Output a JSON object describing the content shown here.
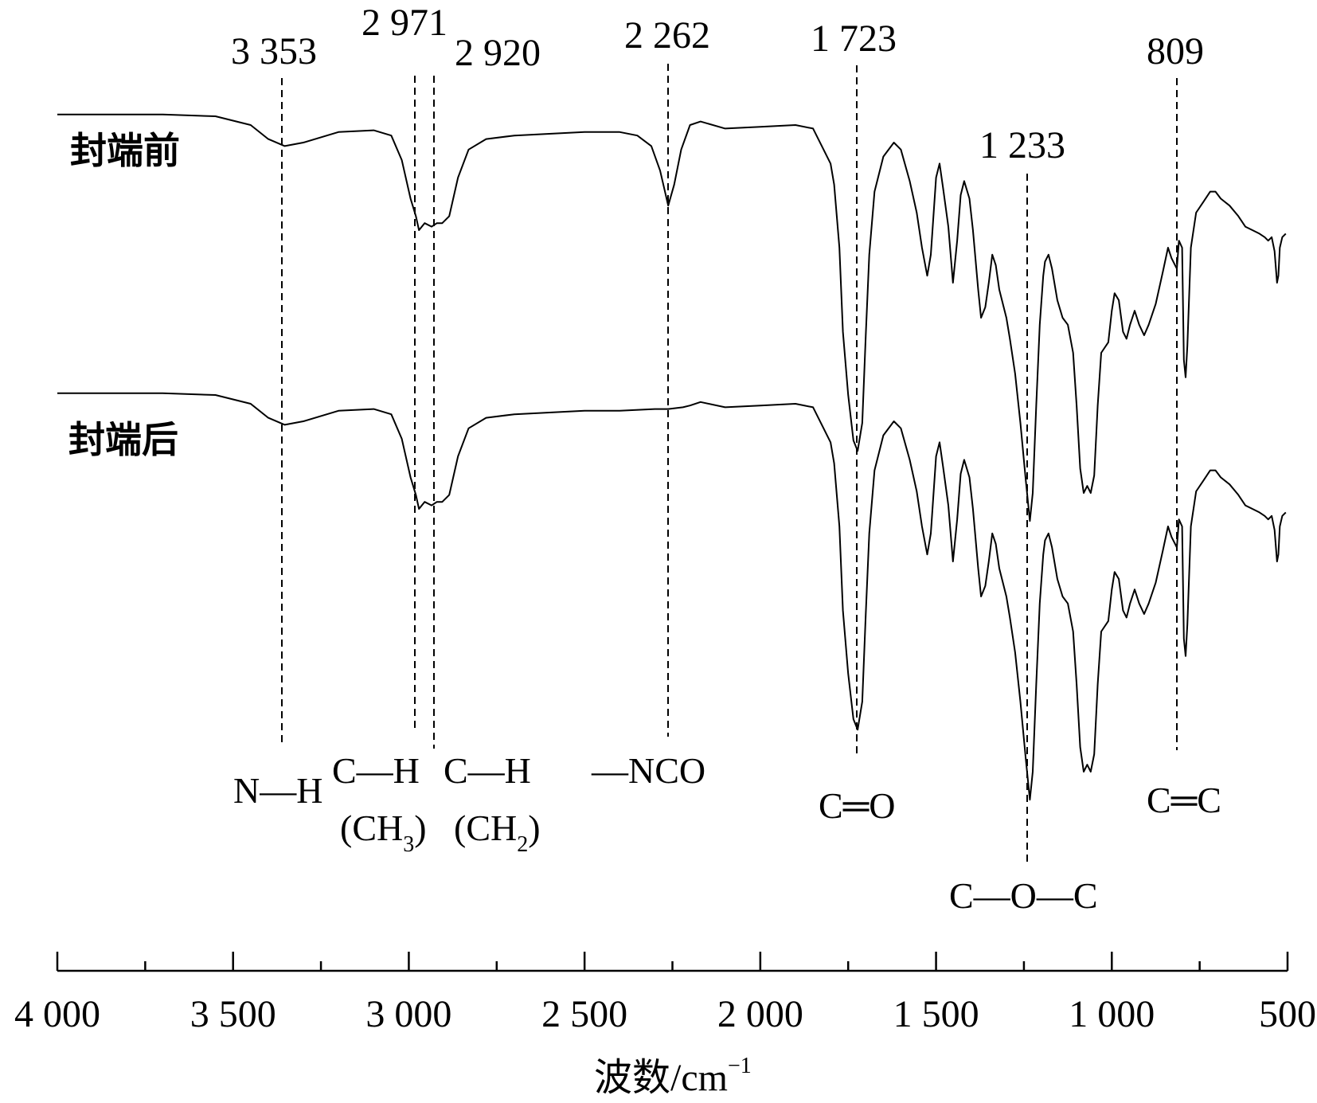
{
  "chart_data": {
    "type": "line",
    "title": "",
    "xlabel": "波数/cm⁻¹",
    "ylabel": "",
    "xlim": [
      4000,
      500
    ],
    "x_reversed": true,
    "x_ticks": [
      {
        "value": 4000,
        "label": "4 000"
      },
      {
        "value": 3500,
        "label": "3 500"
      },
      {
        "value": 3000,
        "label": "3 000"
      },
      {
        "value": 2500,
        "label": "2 500"
      },
      {
        "value": 2000,
        "label": "2 000"
      },
      {
        "value": 1500,
        "label": "1 500"
      },
      {
        "value": 1000,
        "label": "1 000"
      },
      {
        "value": 500,
        "label": "500"
      }
    ],
    "x_minor_ticks": [
      3750,
      3250,
      2750,
      2250,
      1750,
      1250,
      750
    ],
    "grid": false,
    "legend": "none",
    "series": [
      {
        "name": "封端前",
        "points": [
          [
            4000,
            0.98
          ],
          [
            3700,
            0.98
          ],
          [
            3550,
            0.975
          ],
          [
            3450,
            0.95
          ],
          [
            3400,
            0.91
          ],
          [
            3353,
            0.89
          ],
          [
            3300,
            0.9
          ],
          [
            3200,
            0.93
          ],
          [
            3100,
            0.935
          ],
          [
            3050,
            0.92
          ],
          [
            3020,
            0.85
          ],
          [
            2995,
            0.74
          ],
          [
            2980,
            0.69
          ],
          [
            2971,
            0.65
          ],
          [
            2955,
            0.67
          ],
          [
            2935,
            0.66
          ],
          [
            2920,
            0.67
          ],
          [
            2905,
            0.67
          ],
          [
            2885,
            0.69
          ],
          [
            2860,
            0.8
          ],
          [
            2830,
            0.88
          ],
          [
            2780,
            0.91
          ],
          [
            2700,
            0.92
          ],
          [
            2600,
            0.925
          ],
          [
            2500,
            0.93
          ],
          [
            2400,
            0.93
          ],
          [
            2350,
            0.92
          ],
          [
            2310,
            0.89
          ],
          [
            2285,
            0.82
          ],
          [
            2262,
            0.72
          ],
          [
            2245,
            0.78
          ],
          [
            2225,
            0.88
          ],
          [
            2200,
            0.95
          ],
          [
            2170,
            0.96
          ],
          [
            2100,
            0.94
          ],
          [
            2000,
            0.945
          ],
          [
            1900,
            0.95
          ],
          [
            1850,
            0.94
          ],
          [
            1820,
            0.88
          ],
          [
            1800,
            0.84
          ],
          [
            1790,
            0.78
          ],
          [
            1775,
            0.6
          ],
          [
            1765,
            0.36
          ],
          [
            1750,
            0.18
          ],
          [
            1735,
            0.05
          ],
          [
            1723,
            0.02
          ],
          [
            1710,
            0.1
          ],
          [
            1700,
            0.35
          ],
          [
            1690,
            0.58
          ],
          [
            1675,
            0.76
          ],
          [
            1650,
            0.86
          ],
          [
            1620,
            0.9
          ],
          [
            1600,
            0.88
          ],
          [
            1575,
            0.79
          ],
          [
            1555,
            0.7
          ],
          [
            1540,
            0.6
          ],
          [
            1525,
            0.52
          ],
          [
            1515,
            0.58
          ],
          [
            1500,
            0.8
          ],
          [
            1490,
            0.84
          ],
          [
            1480,
            0.77
          ],
          [
            1465,
            0.66
          ],
          [
            1452,
            0.5
          ],
          [
            1440,
            0.62
          ],
          [
            1430,
            0.75
          ],
          [
            1420,
            0.79
          ],
          [
            1405,
            0.74
          ],
          [
            1395,
            0.65
          ],
          [
            1380,
            0.48
          ],
          [
            1372,
            0.4
          ],
          [
            1360,
            0.43
          ],
          [
            1350,
            0.5
          ],
          [
            1340,
            0.58
          ],
          [
            1330,
            0.55
          ],
          [
            1320,
            0.48
          ],
          [
            1300,
            0.4
          ],
          [
            1290,
            0.34
          ],
          [
            1275,
            0.24
          ],
          [
            1260,
            0.1
          ],
          [
            1245,
            -0.06
          ],
          [
            1233,
            -0.18
          ],
          [
            1225,
            -0.1
          ],
          [
            1215,
            0.15
          ],
          [
            1205,
            0.38
          ],
          [
            1195,
            0.52
          ],
          [
            1190,
            0.56
          ],
          [
            1180,
            0.58
          ],
          [
            1170,
            0.54
          ],
          [
            1155,
            0.45
          ],
          [
            1140,
            0.4
          ],
          [
            1125,
            0.38
          ],
          [
            1110,
            0.3
          ],
          [
            1100,
            0.15
          ],
          [
            1090,
            -0.03
          ],
          [
            1080,
            -0.1
          ],
          [
            1070,
            -0.08
          ],
          [
            1060,
            -0.1
          ],
          [
            1050,
            -0.05
          ],
          [
            1040,
            0.15
          ],
          [
            1030,
            0.3
          ],
          [
            1010,
            0.33
          ],
          [
            1000,
            0.42
          ],
          [
            992,
            0.47
          ],
          [
            980,
            0.45
          ],
          [
            968,
            0.36
          ],
          [
            958,
            0.34
          ],
          [
            948,
            0.38
          ],
          [
            935,
            0.42
          ],
          [
            922,
            0.38
          ],
          [
            908,
            0.35
          ],
          [
            895,
            0.38
          ],
          [
            875,
            0.44
          ],
          [
            855,
            0.53
          ],
          [
            840,
            0.6
          ],
          [
            830,
            0.57
          ],
          [
            815,
            0.54
          ],
          [
            809,
            0.62
          ],
          [
            800,
            0.6
          ],
          [
            795,
            0.28
          ],
          [
            790,
            0.23
          ],
          [
            785,
            0.32
          ],
          [
            775,
            0.6
          ],
          [
            760,
            0.7
          ],
          [
            740,
            0.73
          ],
          [
            720,
            0.76
          ],
          [
            705,
            0.76
          ],
          [
            690,
            0.74
          ],
          [
            665,
            0.72
          ],
          [
            640,
            0.69
          ],
          [
            620,
            0.66
          ],
          [
            600,
            0.65
          ],
          [
            580,
            0.64
          ],
          [
            565,
            0.63
          ],
          [
            555,
            0.62
          ],
          [
            545,
            0.63
          ],
          [
            537,
            0.59
          ],
          [
            530,
            0.5
          ],
          [
            526,
            0.52
          ],
          [
            522,
            0.6
          ],
          [
            515,
            0.63
          ],
          [
            505,
            0.64
          ]
        ]
      },
      {
        "name": "封端后",
        "points": [
          [
            4000,
            0.98
          ],
          [
            3700,
            0.98
          ],
          [
            3550,
            0.975
          ],
          [
            3450,
            0.95
          ],
          [
            3400,
            0.91
          ],
          [
            3353,
            0.89
          ],
          [
            3300,
            0.9
          ],
          [
            3200,
            0.93
          ],
          [
            3100,
            0.935
          ],
          [
            3050,
            0.92
          ],
          [
            3020,
            0.85
          ],
          [
            2995,
            0.74
          ],
          [
            2980,
            0.69
          ],
          [
            2971,
            0.65
          ],
          [
            2955,
            0.67
          ],
          [
            2935,
            0.66
          ],
          [
            2920,
            0.67
          ],
          [
            2905,
            0.67
          ],
          [
            2885,
            0.69
          ],
          [
            2860,
            0.8
          ],
          [
            2830,
            0.88
          ],
          [
            2780,
            0.91
          ],
          [
            2700,
            0.92
          ],
          [
            2600,
            0.925
          ],
          [
            2500,
            0.93
          ],
          [
            2400,
            0.93
          ],
          [
            2300,
            0.935
          ],
          [
            2262,
            0.935
          ],
          [
            2220,
            0.94
          ],
          [
            2200,
            0.945
          ],
          [
            2170,
            0.955
          ],
          [
            2100,
            0.94
          ],
          [
            2000,
            0.945
          ],
          [
            1900,
            0.95
          ],
          [
            1850,
            0.94
          ],
          [
            1820,
            0.88
          ],
          [
            1800,
            0.84
          ],
          [
            1790,
            0.78
          ],
          [
            1775,
            0.6
          ],
          [
            1765,
            0.36
          ],
          [
            1750,
            0.18
          ],
          [
            1735,
            0.05
          ],
          [
            1723,
            0.02
          ],
          [
            1710,
            0.1
          ],
          [
            1700,
            0.35
          ],
          [
            1690,
            0.58
          ],
          [
            1675,
            0.76
          ],
          [
            1650,
            0.86
          ],
          [
            1620,
            0.9
          ],
          [
            1600,
            0.88
          ],
          [
            1575,
            0.79
          ],
          [
            1555,
            0.7
          ],
          [
            1540,
            0.6
          ],
          [
            1525,
            0.52
          ],
          [
            1515,
            0.58
          ],
          [
            1500,
            0.8
          ],
          [
            1490,
            0.84
          ],
          [
            1480,
            0.77
          ],
          [
            1465,
            0.66
          ],
          [
            1452,
            0.5
          ],
          [
            1440,
            0.62
          ],
          [
            1430,
            0.75
          ],
          [
            1420,
            0.79
          ],
          [
            1405,
            0.74
          ],
          [
            1395,
            0.65
          ],
          [
            1380,
            0.48
          ],
          [
            1372,
            0.4
          ],
          [
            1360,
            0.43
          ],
          [
            1350,
            0.5
          ],
          [
            1340,
            0.58
          ],
          [
            1330,
            0.55
          ],
          [
            1320,
            0.48
          ],
          [
            1300,
            0.4
          ],
          [
            1290,
            0.34
          ],
          [
            1275,
            0.24
          ],
          [
            1260,
            0.1
          ],
          [
            1245,
            -0.06
          ],
          [
            1233,
            -0.18
          ],
          [
            1225,
            -0.1
          ],
          [
            1215,
            0.15
          ],
          [
            1205,
            0.38
          ],
          [
            1195,
            0.52
          ],
          [
            1190,
            0.56
          ],
          [
            1180,
            0.58
          ],
          [
            1170,
            0.54
          ],
          [
            1155,
            0.45
          ],
          [
            1140,
            0.4
          ],
          [
            1125,
            0.38
          ],
          [
            1110,
            0.3
          ],
          [
            1100,
            0.15
          ],
          [
            1090,
            -0.03
          ],
          [
            1080,
            -0.1
          ],
          [
            1070,
            -0.08
          ],
          [
            1060,
            -0.1
          ],
          [
            1050,
            -0.05
          ],
          [
            1040,
            0.15
          ],
          [
            1030,
            0.3
          ],
          [
            1010,
            0.33
          ],
          [
            1000,
            0.42
          ],
          [
            992,
            0.47
          ],
          [
            980,
            0.45
          ],
          [
            968,
            0.36
          ],
          [
            958,
            0.34
          ],
          [
            948,
            0.38
          ],
          [
            935,
            0.42
          ],
          [
            922,
            0.38
          ],
          [
            908,
            0.35
          ],
          [
            895,
            0.38
          ],
          [
            875,
            0.44
          ],
          [
            855,
            0.53
          ],
          [
            840,
            0.6
          ],
          [
            830,
            0.57
          ],
          [
            815,
            0.54
          ],
          [
            809,
            0.62
          ],
          [
            800,
            0.6
          ],
          [
            795,
            0.28
          ],
          [
            790,
            0.23
          ],
          [
            785,
            0.32
          ],
          [
            775,
            0.6
          ],
          [
            760,
            0.7
          ],
          [
            740,
            0.73
          ],
          [
            720,
            0.76
          ],
          [
            705,
            0.76
          ],
          [
            690,
            0.74
          ],
          [
            665,
            0.72
          ],
          [
            640,
            0.69
          ],
          [
            620,
            0.66
          ],
          [
            600,
            0.65
          ],
          [
            580,
            0.64
          ],
          [
            565,
            0.63
          ],
          [
            555,
            0.62
          ],
          [
            545,
            0.63
          ],
          [
            537,
            0.59
          ],
          [
            530,
            0.5
          ],
          [
            526,
            0.52
          ],
          [
            522,
            0.6
          ],
          [
            515,
            0.63
          ],
          [
            505,
            0.64
          ]
        ]
      }
    ],
    "peaks": [
      {
        "wavenumber": 3353,
        "label": "3 353",
        "assignment": "N—H"
      },
      {
        "wavenumber": 2971,
        "label": "2 971",
        "assignment": "C—H (CH3)"
      },
      {
        "wavenumber": 2920,
        "label": "2 920",
        "assignment": "C—H (CH2)"
      },
      {
        "wavenumber": 2262,
        "label": "2 262",
        "assignment": "—NCO"
      },
      {
        "wavenumber": 1723,
        "label": "1 723",
        "assignment": "C═O"
      },
      {
        "wavenumber": 1233,
        "label": "1 233",
        "assignment": "C—O—C"
      },
      {
        "wavenumber": 809,
        "label": "809",
        "assignment": "C═C"
      }
    ]
  },
  "series_labels": {
    "before": "封端前",
    "after": "封端后"
  },
  "axis_title": {
    "main": "波数/cm",
    "superscript": "−1"
  },
  "bond_labels": {
    "nh": "N—H",
    "ch3_top": "C—H",
    "ch3_open": "(CH",
    "ch3_sub": "3",
    "ch3_close": ")",
    "ch2_top": "C—H",
    "ch2_open": "(CH",
    "ch2_sub": "2",
    "ch2_close": ")",
    "nco": "—NCO",
    "co_double": "C═O",
    "coc": "C—O—C",
    "cc_double": "C═C"
  }
}
